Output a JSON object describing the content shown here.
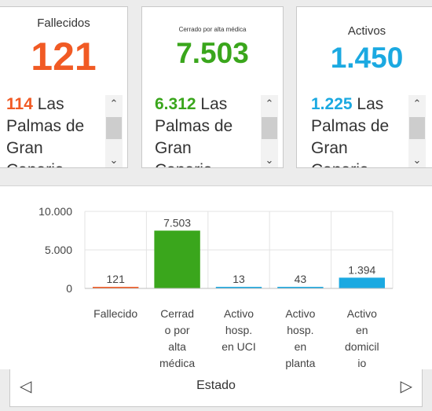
{
  "cards": [
    {
      "title": "Fallecidos",
      "value": "121",
      "color": "#f15a24",
      "entry_num": "114",
      "entry_text": "Las Palmas de Gran Canaria"
    },
    {
      "title": "Cerrado por alta médica",
      "value": "7.503",
      "color": "#3aa61c",
      "entry_num": "6.312",
      "entry_text": "Las Palmas de Gran Canaria"
    },
    {
      "title": "Activos",
      "value": "1.450",
      "color": "#1ba9e1",
      "entry_num": "1.225",
      "entry_text": "Las Palmas de Gran Canaria"
    }
  ],
  "chart_data": {
    "type": "bar",
    "categories": [
      [
        "Fallecido"
      ],
      [
        "Cerrad",
        "o por",
        "alta",
        "médica"
      ],
      [
        "Activo",
        "hosp.",
        "en UCI"
      ],
      [
        "Activo",
        "hosp.",
        "en",
        "planta"
      ],
      [
        "Activo",
        "en",
        "domicil",
        "io"
      ]
    ],
    "values": [
      121,
      7503,
      13,
      43,
      1394
    ],
    "value_labels": [
      "121",
      "7.503",
      "13",
      "43",
      "1.394"
    ],
    "colors": [
      "#f15a24",
      "#3aa61c",
      "#1ba9e1",
      "#1ba9e1",
      "#1ba9e1"
    ],
    "yticks": [
      0,
      5000,
      10000
    ],
    "ytick_labels": [
      "0",
      "5.000",
      "10.000"
    ],
    "ylim": [
      0,
      10000
    ],
    "xlabel": "Estado",
    "grid": true
  },
  "icons": {
    "scroll_up": "chevron-up-icon",
    "scroll_down": "chevron-down-icon",
    "nav_prev": "triangle-left-icon",
    "nav_next": "triangle-right-icon"
  }
}
